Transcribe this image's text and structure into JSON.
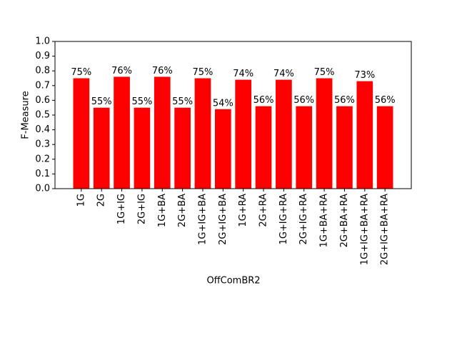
{
  "chart_data": {
    "type": "bar",
    "x_label": "OffComBR2",
    "y_label": "F-Measure",
    "categories": [
      "1G",
      "2G",
      "1G+IG",
      "2G+IG",
      "1G+BA",
      "2G+BA",
      "1G+IG+BA",
      "2G+IG+BA",
      "1G+RA",
      "2G+RA",
      "1G+IG+RA",
      "2G+IG+RA",
      "1G+BA+RA",
      "2G+BA+RA",
      "1G+IG+BA+RA",
      "2G+IG+BA+RA"
    ],
    "values": [
      0.75,
      0.55,
      0.76,
      0.55,
      0.76,
      0.55,
      0.75,
      0.54,
      0.74,
      0.56,
      0.74,
      0.56,
      0.75,
      0.56,
      0.73,
      0.56
    ],
    "value_labels": [
      "75%",
      "55%",
      "76%",
      "55%",
      "76%",
      "55%",
      "75%",
      "54%",
      "74%",
      "56%",
      "74%",
      "56%",
      "75%",
      "56%",
      "73%",
      "56%"
    ],
    "color": "#ff0000",
    "ylim": [
      0,
      1.0
    ],
    "yticks": [
      {
        "value": 0,
        "label": "0.0"
      },
      0.1,
      0.2,
      0.3,
      0.4,
      0.5,
      0.6,
      0.7,
      0.8,
      0.9,
      {
        "value": 1.0,
        "label": "1.0"
      }
    ],
    "grid": false
  }
}
